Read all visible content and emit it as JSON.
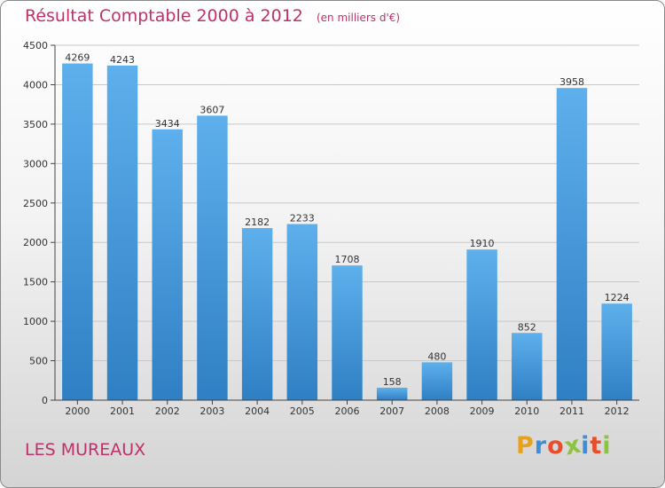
{
  "title": "Résultat Comptable 2000 à 2012",
  "unit_note": "(en milliers d'€)",
  "city": "LES MUREAUX",
  "logo": {
    "letters": [
      "P",
      "r",
      "o",
      "x",
      "i",
      "t",
      "i"
    ],
    "colors": [
      "#e8a21a",
      "#3c8ed8",
      "#e94d2c",
      "#8cc43f",
      "#3c8ed8",
      "#e94d2c",
      "#8cc43f"
    ]
  },
  "chart_data": {
    "type": "bar",
    "title": "Résultat Comptable 2000 à 2012",
    "categories": [
      "2000",
      "2001",
      "2002",
      "2003",
      "2004",
      "2005",
      "2006",
      "2007",
      "2008",
      "2009",
      "2010",
      "2011",
      "2012"
    ],
    "values": [
      4269,
      4243,
      3434,
      3607,
      2182,
      2233,
      1708,
      158,
      480,
      1910,
      852,
      3958,
      1224
    ],
    "ylim": [
      0,
      4500
    ],
    "yticks": [
      0,
      500,
      1000,
      1500,
      2000,
      2500,
      3000,
      3500,
      4000,
      4500
    ],
    "grid": true,
    "bar_color": "#4a9fe0"
  }
}
